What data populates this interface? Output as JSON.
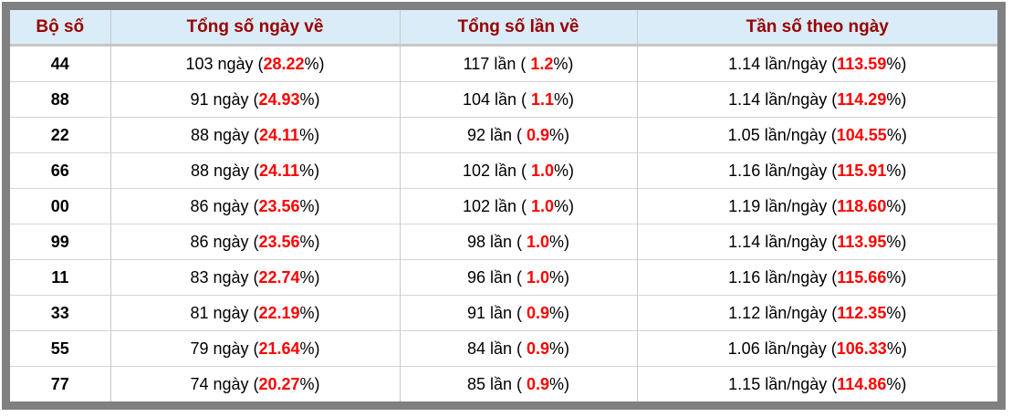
{
  "colors": {
    "frame_gray": "#808080",
    "header_bg": "#d9ecf7",
    "header_text": "#990000",
    "accent_red": "#ff0000",
    "divider": "#c9c9c9"
  },
  "table": {
    "headers": [
      "Bộ số",
      "Tổng số ngày về",
      "Tổng số lần về",
      "Tần số theo ngày"
    ],
    "pct_close": "%)",
    "rows": [
      {
        "pair": "44",
        "days_label": "103 ngày (",
        "days_pct": "28.22",
        "times_label": "117 lần ( ",
        "times_pct": "1.2",
        "freq_label": "1.14 lần/ngày (",
        "freq_pct": "113.59"
      },
      {
        "pair": "88",
        "days_label": "91 ngày (",
        "days_pct": "24.93",
        "times_label": "104 lần ( ",
        "times_pct": "1.1",
        "freq_label": "1.14 lần/ngày (",
        "freq_pct": "114.29"
      },
      {
        "pair": "22",
        "days_label": "88 ngày (",
        "days_pct": "24.11",
        "times_label": "92 lần ( ",
        "times_pct": "0.9",
        "freq_label": "1.05 lần/ngày (",
        "freq_pct": "104.55"
      },
      {
        "pair": "66",
        "days_label": "88 ngày (",
        "days_pct": "24.11",
        "times_label": "102 lần ( ",
        "times_pct": "1.0",
        "freq_label": "1.16 lần/ngày (",
        "freq_pct": "115.91"
      },
      {
        "pair": "00",
        "days_label": "86 ngày (",
        "days_pct": "23.56",
        "times_label": "102 lần ( ",
        "times_pct": "1.0",
        "freq_label": "1.19 lần/ngày (",
        "freq_pct": "118.60"
      },
      {
        "pair": "99",
        "days_label": "86 ngày (",
        "days_pct": "23.56",
        "times_label": "98 lần ( ",
        "times_pct": "1.0",
        "freq_label": "1.14 lần/ngày (",
        "freq_pct": "113.95"
      },
      {
        "pair": "11",
        "days_label": "83 ngày (",
        "days_pct": "22.74",
        "times_label": "96 lần ( ",
        "times_pct": "1.0",
        "freq_label": "1.16 lần/ngày (",
        "freq_pct": "115.66"
      },
      {
        "pair": "33",
        "days_label": "81 ngày (",
        "days_pct": "22.19",
        "times_label": "91 lần ( ",
        "times_pct": "0.9",
        "freq_label": "1.12 lần/ngày (",
        "freq_pct": "112.35"
      },
      {
        "pair": "55",
        "days_label": "79 ngày (",
        "days_pct": "21.64",
        "times_label": "84 lần ( ",
        "times_pct": "0.9",
        "freq_label": "1.06 lần/ngày (",
        "freq_pct": "106.33"
      },
      {
        "pair": "77",
        "days_label": "74 ngày (",
        "days_pct": "20.27",
        "times_label": "85 lần ( ",
        "times_pct": "0.9",
        "freq_label": "1.15 lần/ngày (",
        "freq_pct": "114.86"
      }
    ]
  }
}
